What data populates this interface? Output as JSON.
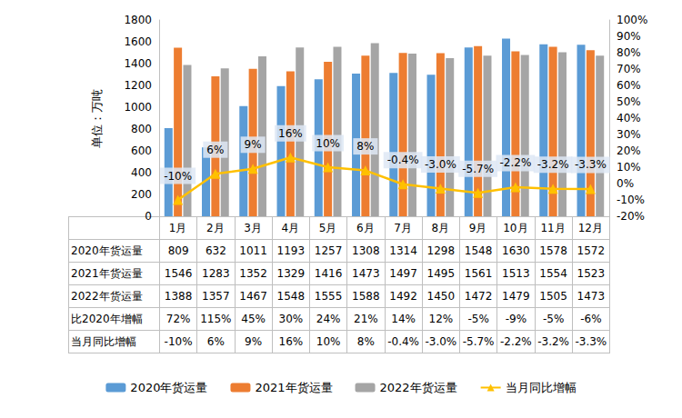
{
  "chart_data": {
    "type": "bar",
    "categories": [
      "1月",
      "2月",
      "3月",
      "4月",
      "5月",
      "6月",
      "7月",
      "8月",
      "9月",
      "10月",
      "11月",
      "12月"
    ],
    "y_label": "单位：万吨",
    "series": [
      {
        "name": "2020年货运量",
        "type": "bar",
        "color": "#5B9BD5",
        "values": [
          809,
          632,
          1011,
          1193,
          1257,
          1308,
          1314,
          1298,
          1548,
          1630,
          1578,
          1572
        ]
      },
      {
        "name": "2021年货运量",
        "type": "bar",
        "color": "#ED7D31",
        "values": [
          1546,
          1283,
          1352,
          1329,
          1416,
          1473,
          1497,
          1495,
          1561,
          1513,
          1554,
          1523
        ]
      },
      {
        "name": "2022年货运量",
        "type": "bar",
        "color": "#A5A5A5",
        "values": [
          1388,
          1357,
          1467,
          1548,
          1555,
          1588,
          1492,
          1450,
          1472,
          1479,
          1505,
          1473
        ]
      },
      {
        "name": "当月同比增幅",
        "type": "line",
        "axis": "y2",
        "color": "#FFC000",
        "marker": "triangle",
        "data_labels": true,
        "values": [
          -10,
          6,
          9,
          16,
          10,
          8,
          -0.4,
          -3.0,
          -5.7,
          -2.2,
          -3.2,
          -3.3
        ],
        "value_labels": [
          "-10%",
          "6%",
          "9%",
          "16%",
          "10%",
          "8%",
          "-0.4%",
          "-3.0%",
          "-5.7%",
          "-2.2%",
          "-3.2%",
          "-3.3%"
        ]
      }
    ],
    "table_rows": [
      {
        "name": "比2020年增幅",
        "values": [
          72,
          115,
          45,
          30,
          24,
          21,
          14,
          12,
          -5,
          -9,
          -5,
          -6
        ],
        "value_labels": [
          "72%",
          "115%",
          "45%",
          "30%",
          "24%",
          "21%",
          "14%",
          "12%",
          "-5%",
          "-9%",
          "-5%",
          "-6%"
        ]
      }
    ],
    "ylim": [
      0,
      1800
    ],
    "yticks": [
      0,
      200,
      400,
      600,
      800,
      1000,
      1200,
      1400,
      1600,
      1800
    ],
    "y2lim": [
      -20,
      100
    ],
    "y2ticks": [
      {
        "value": -20,
        "label": "-20%"
      },
      {
        "value": -10,
        "label": "-10%"
      },
      {
        "value": 0,
        "label": "0%"
      },
      {
        "value": 10,
        "label": "10%"
      },
      {
        "value": 20,
        "label": "20%"
      },
      {
        "value": 30,
        "label": "30%"
      },
      {
        "value": 40,
        "label": "40%"
      },
      {
        "value": 50,
        "label": "50%"
      },
      {
        "value": 60,
        "label": "60%"
      },
      {
        "value": 70,
        "label": "70%"
      },
      {
        "value": 80,
        "label": "80%"
      },
      {
        "value": 90,
        "label": "90%"
      },
      {
        "value": 100,
        "label": "100%"
      }
    ],
    "grid": false,
    "legend": "bottom"
  }
}
